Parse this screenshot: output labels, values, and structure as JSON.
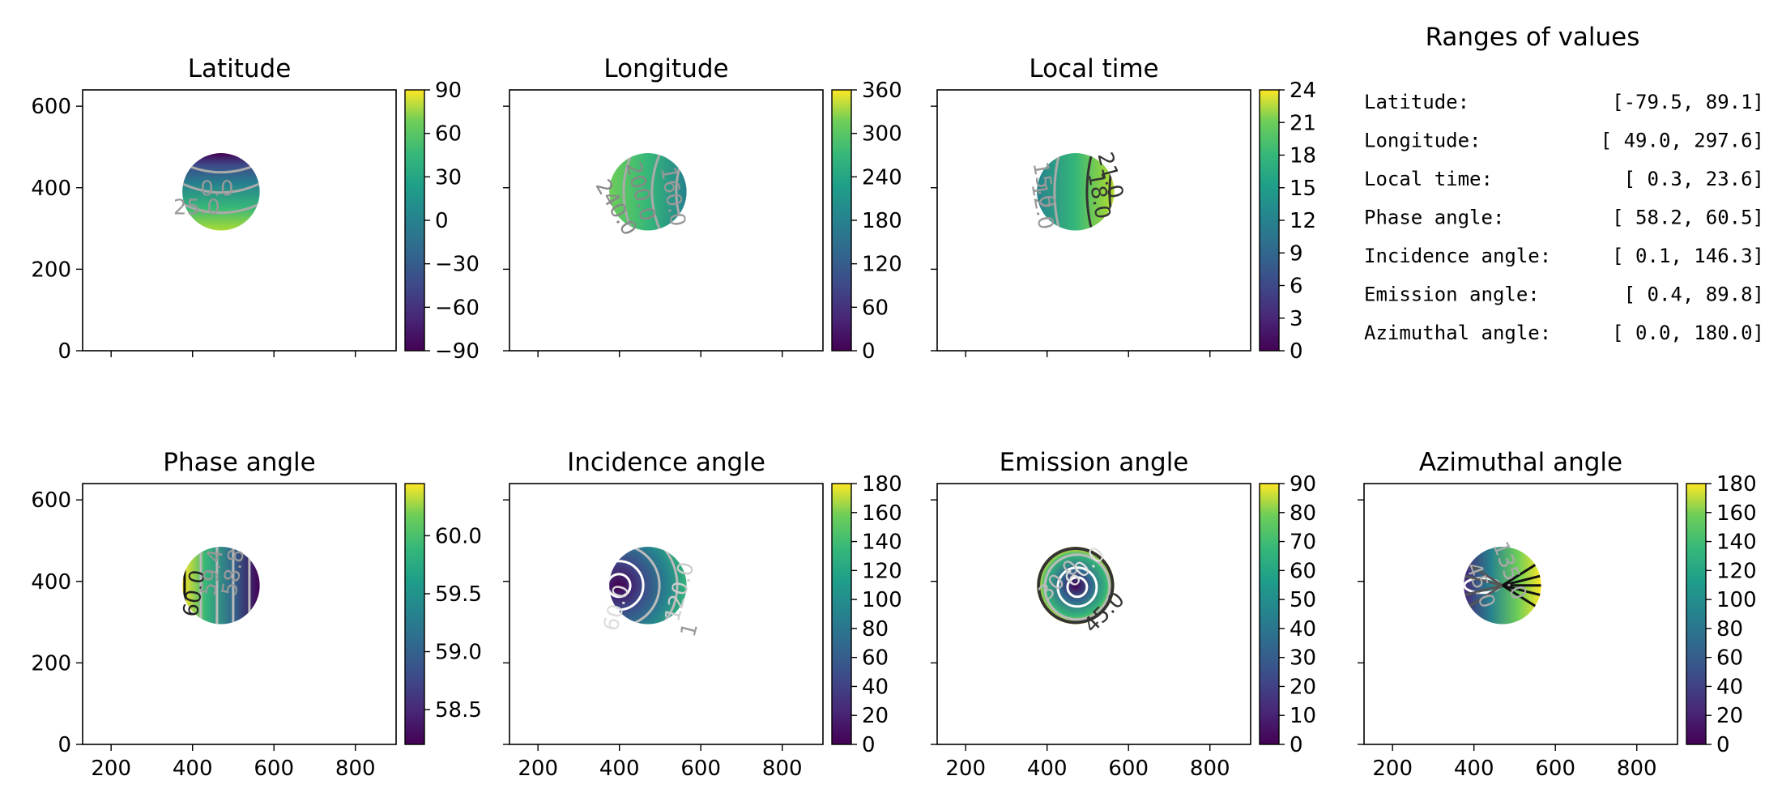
{
  "chart_data": {
    "type": "heatmap",
    "title": "",
    "panels": [
      {
        "id": "latitude",
        "title": "Latitude",
        "vmin": -90,
        "vmax": 90,
        "cbar_ticks": [
          90,
          60,
          30,
          0,
          -30,
          -60,
          -90
        ],
        "cbar_labels": [
          "90",
          "60",
          "30",
          "0",
          "−30",
          "−60",
          "−90"
        ],
        "contour_labels": [
          "0.0",
          "25.0"
        ]
      },
      {
        "id": "longitude",
        "title": "Longitude",
        "vmin": 0,
        "vmax": 360,
        "cbar_ticks": [
          360,
          300,
          240,
          180,
          120,
          60,
          0
        ],
        "cbar_labels": [
          "360",
          "300",
          "240",
          "180",
          "120",
          "60",
          "0"
        ],
        "contour_labels": [
          "200.0",
          "160.0",
          "240.0"
        ]
      },
      {
        "id": "local_time",
        "title": "Local time",
        "vmin": 0,
        "vmax": 24,
        "cbar_ticks": [
          24,
          21,
          18,
          15,
          12,
          9,
          6,
          3,
          0
        ],
        "cbar_labels": [
          "24",
          "21",
          "18",
          "15",
          "12",
          "9",
          "6",
          "3",
          "0"
        ],
        "contour_labels": [
          "21.0",
          "18.0",
          "15.0",
          "12.0"
        ]
      },
      {
        "id": "phase_angle",
        "title": "Phase angle",
        "vmin": 58.2,
        "vmax": 60.45,
        "cbar_ticks": [
          60.0,
          59.5,
          59.0,
          58.5
        ],
        "cbar_labels": [
          "60.0",
          "59.5",
          "59.0",
          "58.5"
        ],
        "contour_labels": [
          "60.0",
          "59.4",
          "58.8"
        ]
      },
      {
        "id": "incidence_angle",
        "title": "Incidence angle",
        "vmin": 0,
        "vmax": 180,
        "cbar_ticks": [
          180,
          160,
          140,
          120,
          100,
          80,
          60,
          40,
          20,
          0
        ],
        "cbar_labels": [
          "180",
          "160",
          "140",
          "120",
          "100",
          "80",
          "60",
          "40",
          "20",
          "0"
        ],
        "contour_labels": [
          "60.0",
          "120.0",
          "1"
        ]
      },
      {
        "id": "emission_angle",
        "title": "Emission angle",
        "vmin": 0,
        "vmax": 90,
        "cbar_ticks": [
          90,
          80,
          70,
          60,
          50,
          40,
          30,
          20,
          10,
          0
        ],
        "cbar_labels": [
          "90",
          "80",
          "70",
          "60",
          "50",
          "40",
          "30",
          "20",
          "10",
          "0"
        ],
        "contour_labels": [
          "30.0",
          "60.0",
          "45.0"
        ]
      },
      {
        "id": "azimuthal_angle",
        "title": "Azimuthal angle",
        "vmin": 0,
        "vmax": 180,
        "cbar_ticks": [
          180,
          160,
          140,
          120,
          100,
          80,
          60,
          40,
          20,
          0
        ],
        "cbar_labels": [
          "180",
          "160",
          "140",
          "120",
          "100",
          "80",
          "60",
          "40",
          "20",
          "0"
        ],
        "contour_labels": [
          "45.0",
          "135.0"
        ]
      }
    ],
    "x_ticks": [
      200,
      400,
      600,
      800
    ],
    "y_ticks": [
      0,
      200,
      400,
      600
    ],
    "xlim": [
      130,
      900
    ],
    "ylim": [
      0,
      640
    ],
    "disc": {
      "cx": 470,
      "cy": 390,
      "r": 95
    },
    "colormap": "viridis"
  },
  "ranges": {
    "title": "Ranges of values",
    "rows": [
      {
        "label": "Latitude:",
        "value": "[-79.5,  89.1]"
      },
      {
        "label": "Longitude:",
        "value": "[ 49.0, 297.6]"
      },
      {
        "label": "Local time:",
        "value": "[  0.3,  23.6]"
      },
      {
        "label": "Phase angle:",
        "value": "[ 58.2,  60.5]"
      },
      {
        "label": "Incidence angle:",
        "value": "[  0.1, 146.3]"
      },
      {
        "label": "Emission angle:",
        "value": "[  0.4,  89.8]"
      },
      {
        "label": "Azimuthal angle:",
        "value": "[  0.0, 180.0]"
      }
    ]
  }
}
